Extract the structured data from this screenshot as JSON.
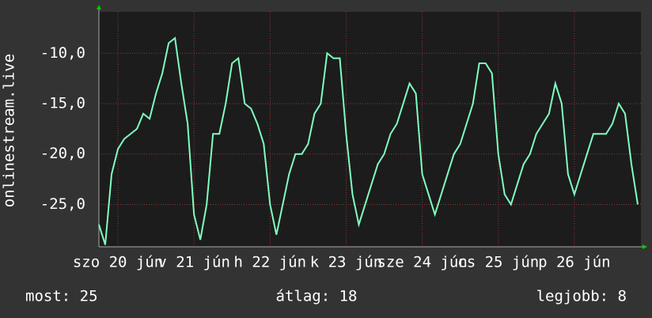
{
  "chart_data": {
    "type": "line",
    "y_label": "onlinestream.live",
    "x": [
      0,
      2,
      4,
      6,
      8,
      10,
      12,
      14,
      16,
      18,
      20,
      22,
      24,
      26,
      28,
      30,
      32,
      34,
      36,
      38,
      40,
      42,
      44,
      46,
      48,
      50,
      52,
      54,
      56,
      58,
      60,
      62,
      64,
      66,
      68,
      70,
      72,
      74,
      76,
      78,
      80,
      82,
      84,
      86,
      88,
      90,
      92,
      94,
      96,
      98,
      100,
      102,
      104,
      106,
      108,
      110,
      112,
      114,
      116,
      118,
      120,
      122,
      124,
      126,
      128,
      130,
      132,
      134,
      136,
      138,
      140,
      142,
      144,
      146,
      148,
      150,
      152,
      154,
      156,
      158,
      160,
      162,
      164,
      166,
      168,
      170
    ],
    "series": [
      {
        "color": "#7fffbf",
        "values": [
          -27,
          -29,
          -22,
          -19.5,
          -18.5,
          -18,
          -17.5,
          -16,
          -16.5,
          -14,
          -12,
          -9,
          -8.5,
          -13,
          -17,
          -26,
          -28.5,
          -25,
          -18,
          -18,
          -15,
          -11,
          -10.5,
          -15,
          -15.5,
          -17,
          -19,
          -25,
          -28,
          -25,
          -22,
          -20,
          -20,
          -19,
          -16,
          -15,
          -10,
          -10.5,
          -10.5,
          -18,
          -24,
          -27,
          -25,
          -23,
          -21,
          -20,
          -18,
          -17,
          -15,
          -13,
          -14,
          -22,
          -24,
          -26,
          -24,
          -22,
          -20,
          -19,
          -17,
          -15,
          -11,
          -11,
          -12,
          -20,
          -24,
          -25,
          -23,
          -21,
          -20,
          -18,
          -17,
          -16,
          -13,
          -15,
          -22,
          -24,
          -22,
          -20,
          -18,
          -18,
          -18,
          -17,
          -15,
          -16,
          -21,
          -25
        ]
      }
    ],
    "xlim": [
      0,
      171
    ],
    "xticks": [
      {
        "value": 6,
        "label": "szo 20 jún"
      },
      {
        "value": 30,
        "label": "v 21 jún"
      },
      {
        "value": 54,
        "label": "h 22 jún"
      },
      {
        "value": 78,
        "label": "k 23 jún"
      },
      {
        "value": 102,
        "label": "sze 24 jún"
      },
      {
        "value": 126,
        "label": "cs 25 jún"
      },
      {
        "value": 150,
        "label": "p 26 jún"
      }
    ],
    "ylim": [
      -29.2,
      -5.9
    ],
    "yticks": [
      {
        "value": -10,
        "label": "-10,0"
      },
      {
        "value": -15,
        "label": "-15,0"
      },
      {
        "value": -20,
        "label": "-20,0"
      },
      {
        "value": -25,
        "label": "-25,0"
      }
    ],
    "grid": true,
    "summary": [
      "most: 25",
      "átlag: 18",
      "legjobb: 8"
    ]
  }
}
